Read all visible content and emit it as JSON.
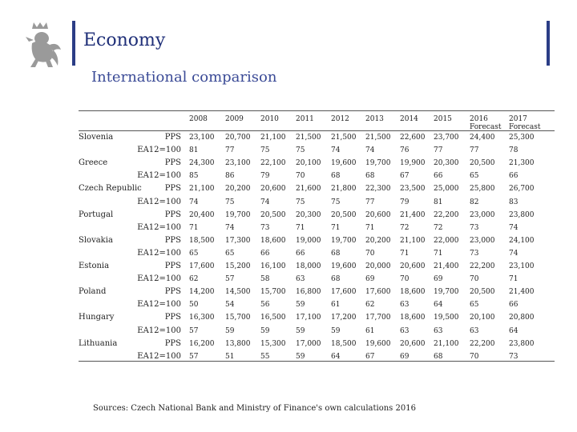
{
  "header": {
    "title": "Economy",
    "subtitle": "International comparison"
  },
  "table": {
    "years": [
      "2008",
      "2009",
      "2010",
      "2011",
      "2012",
      "2013",
      "2014",
      "2015",
      "2016\nForecast",
      "2017\nForecast"
    ],
    "countries": [
      {
        "name": "Slovenia",
        "rows": [
          {
            "label": "PPS",
            "values": [
              "23,100",
              "20,700",
              "21,100",
              "21,500",
              "21,500",
              "21,500",
              "22,600",
              "23,700",
              "24,400",
              "25,300"
            ]
          },
          {
            "label": "EA12=100",
            "values": [
              "81",
              "77",
              "75",
              "75",
              "74",
              "74",
              "76",
              "77",
              "77",
              "78"
            ]
          }
        ]
      },
      {
        "name": "Greece",
        "rows": [
          {
            "label": "PPS",
            "values": [
              "24,300",
              "23,100",
              "22,100",
              "20,100",
              "19,600",
              "19,700",
              "19,900",
              "20,300",
              "20,500",
              "21,300"
            ]
          },
          {
            "label": "EA12=100",
            "values": [
              "85",
              "86",
              "79",
              "70",
              "68",
              "68",
              "67",
              "66",
              "65",
              "66"
            ]
          }
        ]
      },
      {
        "name": "Czech Republic",
        "rows": [
          {
            "label": "PPS",
            "values": [
              "21,100",
              "20,200",
              "20,600",
              "21,600",
              "21,800",
              "22,300",
              "23,500",
              "25,000",
              "25,800",
              "26,700"
            ]
          },
          {
            "label": "EA12=100",
            "values": [
              "74",
              "75",
              "74",
              "75",
              "75",
              "77",
              "79",
              "81",
              "82",
              "83"
            ]
          }
        ]
      },
      {
        "name": "Portugal",
        "rows": [
          {
            "label": "PPS",
            "values": [
              "20,400",
              "19,700",
              "20,500",
              "20,300",
              "20,500",
              "20,600",
              "21,400",
              "22,200",
              "23,000",
              "23,800"
            ]
          },
          {
            "label": "EA12=100",
            "values": [
              "71",
              "74",
              "73",
              "71",
              "71",
              "71",
              "72",
              "72",
              "73",
              "74"
            ]
          }
        ]
      },
      {
        "name": "Slovakia",
        "rows": [
          {
            "label": "PPS",
            "values": [
              "18,500",
              "17,300",
              "18,600",
              "19,000",
              "19,700",
              "20,200",
              "21,100",
              "22,000",
              "23,000",
              "24,100"
            ]
          },
          {
            "label": "EA12=100",
            "values": [
              "65",
              "65",
              "66",
              "66",
              "68",
              "70",
              "71",
              "71",
              "73",
              "74"
            ]
          }
        ]
      },
      {
        "name": "Estonia",
        "rows": [
          {
            "label": "PPS",
            "values": [
              "17,600",
              "15,200",
              "16,100",
              "18,000",
              "19,600",
              "20,000",
              "20,600",
              "21,400",
              "22,200",
              "23,100"
            ]
          },
          {
            "label": "EA12=100",
            "values": [
              "62",
              "57",
              "58",
              "63",
              "68",
              "69",
              "70",
              "69",
              "70",
              "71"
            ]
          }
        ]
      },
      {
        "name": "Poland",
        "rows": [
          {
            "label": "PPS",
            "values": [
              "14,200",
              "14,500",
              "15,700",
              "16,800",
              "17,600",
              "17,600",
              "18,600",
              "19,700",
              "20,500",
              "21,400"
            ]
          },
          {
            "label": "EA12=100",
            "values": [
              "50",
              "54",
              "56",
              "59",
              "61",
              "62",
              "63",
              "64",
              "65",
              "66"
            ]
          }
        ]
      },
      {
        "name": "Hungary",
        "rows": [
          {
            "label": "PPS",
            "values": [
              "16,300",
              "15,700",
              "16,500",
              "17,100",
              "17,200",
              "17,700",
              "18,600",
              "19,500",
              "20,100",
              "20,800"
            ]
          },
          {
            "label": "EA12=100",
            "values": [
              "57",
              "59",
              "59",
              "59",
              "59",
              "61",
              "63",
              "63",
              "63",
              "64"
            ]
          }
        ]
      },
      {
        "name": "Lithuania",
        "rows": [
          {
            "label": "PPS",
            "values": [
              "16,200",
              "13,800",
              "15,300",
              "17,000",
              "18,500",
              "19,600",
              "20,600",
              "21,100",
              "22,200",
              "23,800"
            ]
          },
          {
            "label": "EA12=100",
            "values": [
              "57",
              "51",
              "55",
              "59",
              "64",
              "67",
              "69",
              "68",
              "70",
              "73"
            ]
          }
        ]
      }
    ]
  },
  "footer": {
    "source": "Sources: Czech National Bank and Ministry of Finance's own calculations 2016"
  }
}
